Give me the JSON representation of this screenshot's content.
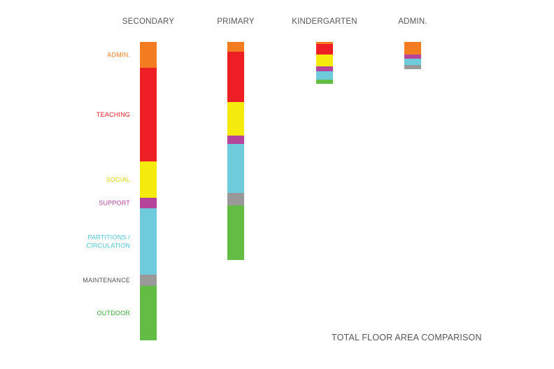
{
  "chart_data": {
    "type": "bar",
    "stacked": true,
    "title": "TOTAL FLOOR AREA COMPARISON",
    "categories": [
      "SECONDARY",
      "PRIMARY",
      "KINDERGARTEN",
      "ADMIN."
    ],
    "series": [
      {
        "name": "ADMIN.",
        "label_lines": [
          "ADMIN."
        ],
        "color": "#f47c20",
        "values": [
          37,
          14,
          3,
          18
        ]
      },
      {
        "name": "TEACHING",
        "label_lines": [
          "TEACHING"
        ],
        "color": "#ee1f24",
        "values": [
          134,
          72,
          15,
          0
        ]
      },
      {
        "name": "SOCIAL",
        "label_lines": [
          "SOCIAL"
        ],
        "color": "#f4ea0c",
        "values": [
          52,
          48,
          17,
          0
        ]
      },
      {
        "name": "SUPPORT",
        "label_lines": [
          "SUPPORT"
        ],
        "color": "#b5459c",
        "values": [
          15,
          12,
          7,
          6
        ]
      },
      {
        "name": "PARTITIONS / CIRCULATION",
        "label_lines": [
          "PARTITIONS /",
          "CIRCULATION"
        ],
        "color": "#6dcbdb",
        "values": [
          95,
          70,
          12,
          9
        ]
      },
      {
        "name": "MAINTENANCE",
        "label_lines": [
          "MAINTENANCE"
        ],
        "color": "#999999",
        "values": [
          16,
          18,
          0,
          6
        ]
      },
      {
        "name": "OUTDOOR",
        "label_lines": [
          "OUTDOOR"
        ],
        "color": "#63bd45",
        "values": [
          78,
          78,
          6,
          0
        ]
      }
    ],
    "label_colors": {
      "ADMIN.": "#f47c20",
      "TEACHING": "#ee1f24",
      "SOCIAL": "#e7d40a",
      "SUPPORT": "#b5459c",
      "PARTITIONS / CIRCULATION": "#4fc3d9",
      "MAINTENANCE": "#555555",
      "OUTDOOR": "#3aa935"
    },
    "axes_visible": false,
    "grid": false,
    "legend": "left (category labels aligned beside first column)"
  }
}
